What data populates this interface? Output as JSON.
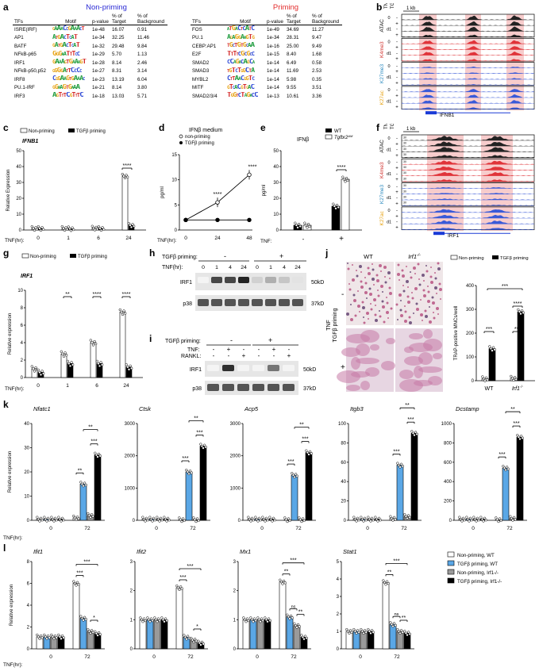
{
  "panels": {
    "a": "a",
    "b": "b",
    "c": "c",
    "d": "d",
    "e": "e",
    "f": "f",
    "g": "g",
    "h": "h",
    "i": "i",
    "j": "j",
    "k": "k",
    "l": "l"
  },
  "panel_a": {
    "nonpriming_title": "Non-priming",
    "priming_title": "Priming",
    "col_tfs": "TFs",
    "col_motif": "Motif",
    "col_pvalue": "p-value",
    "col_target": "% of Target",
    "col_background": "% of Background",
    "nonpriming_rows": [
      {
        "tf": "ISRE(IRF)",
        "logo": "GAAACCGAAACT",
        "p": "1e-48",
        "target": "16.07",
        "bg": "0.91"
      },
      {
        "tf": "AP1",
        "logo": "ATGACTCAT",
        "p": "1e-34",
        "target": "32.25",
        "bg": "11.46"
      },
      {
        "tf": "BATF",
        "logo": "GATGACTCAT",
        "p": "1e-32",
        "target": "29.48",
        "bg": "9.84"
      },
      {
        "tf": "NFkB-p65",
        "logo": "GGGAATTTCC",
        "p": "1e-29",
        "target": "5.70",
        "bg": "1.13"
      },
      {
        "tf": "IRF1",
        "logo": "GAAAGTGAAAGT",
        "p": "1e-28",
        "target": "8.14",
        "bg": "2.46"
      },
      {
        "tf": "NFkB-p50,p52",
        "logo": "GGGGATTCCCC",
        "p": "1e-27",
        "target": "8.31",
        "bg": "3.14"
      },
      {
        "tf": "IRF8",
        "logo": "CGGAAGTGAAAC",
        "p": "1e-23",
        "target": "13.19",
        "bg": "6.04"
      },
      {
        "tf": "PU.1-IRF",
        "logo": "GGAAGTGAAA",
        "p": "1e-21",
        "target": "8.14",
        "bg": "3.80"
      },
      {
        "tf": "IRF3",
        "logo": "AGTTTCGTTTC",
        "p": "1e-18",
        "target": "13.03",
        "bg": "5.71"
      }
    ],
    "priming_rows": [
      {
        "tf": "FOS",
        "logo": "ATGACTCATC",
        "p": "1e-49",
        "target": "34.69",
        "bg": "11.27"
      },
      {
        "tf": "PU.1",
        "logo": "AGAGGAAGTG",
        "p": "1e-34",
        "target": "28.31",
        "bg": "9.47"
      },
      {
        "tf": "CEBP:AP1",
        "logo": "TGCTGTGCAA",
        "p": "1e-16",
        "target": "25.00",
        "bg": "9.49"
      },
      {
        "tf": "E2F",
        "logo": "TTTTCGCGCC",
        "p": "1e-15",
        "target": "8.40",
        "bg": "1.68"
      },
      {
        "tf": "SMAD2",
        "logo": "CCAGACAGCA",
        "p": "1e-14",
        "target": "6.49",
        "bg": "0.58"
      },
      {
        "tf": "SMAD3",
        "logo": "TGTCTGGCTA",
        "p": "1e-14",
        "target": "11.69",
        "bg": "2.53"
      },
      {
        "tf": "MYBL2",
        "logo": "CTTAACGGTC",
        "p": "1e-14",
        "target": "5.98",
        "bg": "0.35"
      },
      {
        "tf": "MITF",
        "logo": "GTCACGTGAC",
        "p": "1e-14",
        "target": "9.55",
        "bg": "3.51"
      },
      {
        "tf": "SMAD2/3/4",
        "logo": "TGGTCTAGACC",
        "p": "1e-13",
        "target": "10.61",
        "bg": "3.36"
      }
    ]
  },
  "tracks": {
    "col_tnf": "TNF",
    "col_tgfb": "TGFβ",
    "scale": "1 kb",
    "groups": [
      {
        "name": "ATAC",
        "color": "#000000"
      },
      {
        "name": "K4me3",
        "color": "#d0312d"
      },
      {
        "name": "K27me3",
        "color": "#2e8bc0"
      },
      {
        "name": "K27ac",
        "color": "#e8a417"
      }
    ],
    "rows": [
      {
        "tnf": "0",
        "tgfb": "-"
      },
      {
        "tnf": "",
        "tgfb": "+"
      },
      {
        "tnf": "d1",
        "tgfb": "-"
      },
      {
        "tnf": "",
        "tgfb": "+"
      }
    ],
    "gene_b": "IFNB1",
    "gene_f": "IRF1",
    "ymax_f": "30"
  },
  "legend_nonpriming": "Non-priming",
  "legend_tgfb": "TGFβ priming",
  "tnf_hr": "TNF(hr):",
  "tnf": "TNF:",
  "relative_expression": "Relative Expression",
  "relative_expression_lc": "Relative expression",
  "pgml": "pg/ml",
  "sig4": "****",
  "sig3": "***",
  "sig2": "**",
  "sig1": "*",
  "ns": "ns",
  "panel_c": {
    "chart_data": {
      "type": "bar",
      "title": "IFNB1",
      "ylabel": "Relative Expression",
      "categories": [
        "0",
        "1",
        "6",
        "24"
      ],
      "series": [
        {
          "name": "Non-priming",
          "values": [
            1,
            1,
            1.2,
            34
          ]
        },
        {
          "name": "TGFβ priming",
          "values": [
            1,
            0.8,
            1,
            3
          ]
        }
      ],
      "ylim": [
        0,
        50
      ],
      "yticks": [
        "0",
        "10",
        "20",
        "30",
        "40",
        "50"
      ]
    }
  },
  "panel_d": {
    "chart_data": {
      "type": "line",
      "title": "IFNβ medium",
      "ylabel": "pg/ml",
      "x": [
        "0",
        "24",
        "48"
      ],
      "series": [
        {
          "name": "non-priming",
          "values": [
            2,
            5.5,
            11
          ]
        },
        {
          "name": "TGFβ priming",
          "values": [
            2,
            2,
            2
          ]
        }
      ],
      "ylim": [
        0,
        15
      ],
      "yticks": [
        "0",
        "5",
        "10",
        "15"
      ]
    }
  },
  "panel_e": {
    "legend_wt": "WT",
    "legend_ko": "Tgfbr2",
    "legend_ko_sup": "ΔM",
    "chart_data": {
      "type": "bar",
      "title": "IFNβ",
      "ylabel": "pg/ml",
      "categories": [
        "-",
        "+"
      ],
      "series": [
        {
          "name": "WT",
          "values": [
            3,
            15
          ]
        },
        {
          "name": "Tgfbr2ΔM",
          "values": [
            3,
            32
          ]
        }
      ],
      "ylim": [
        0,
        50
      ],
      "yticks": [
        "0",
        "10",
        "20",
        "30",
        "40",
        "50"
      ]
    }
  },
  "panel_g": {
    "chart_data": {
      "type": "bar",
      "title": "IRF1",
      "ylabel": "Relative expression",
      "categories": [
        "0",
        "1",
        "6",
        "24"
      ],
      "series": [
        {
          "name": "Non-priming",
          "values": [
            1,
            2.7,
            4,
            7.5
          ]
        },
        {
          "name": "TGFβ priming",
          "values": [
            0.6,
            1.6,
            1.6,
            1.2
          ]
        }
      ],
      "ylim": [
        0,
        10
      ],
      "yticks": [
        "0",
        "2",
        "4",
        "6",
        "8",
        "10"
      ],
      "sig": [
        "",
        "**",
        "****",
        "****"
      ]
    }
  },
  "panel_h": {
    "header": "TGFβ priming:",
    "minus": "-",
    "plus": "+",
    "tnf_label": "TNF(hr):",
    "times": [
      "0",
      "1",
      "4",
      "24",
      "0",
      "1",
      "4",
      "24"
    ],
    "band1": "IRF1",
    "band2": "p38",
    "kd1": "50kD",
    "kd2": "37kD",
    "irf1_intensity": [
      0.05,
      0.8,
      0.8,
      0.95,
      0.2,
      0.35,
      0.25,
      0.12
    ]
  },
  "panel_i": {
    "header": "TGFβ priming:",
    "minus": "-",
    "plus": "+",
    "tnf_label": "TNF:",
    "rankl_label": "RANKL:",
    "tnf_row": [
      "-",
      "+",
      "-",
      "-",
      "+",
      "-"
    ],
    "rankl_row": [
      "-",
      "-",
      "+",
      "-",
      "-",
      "+"
    ],
    "band1": "IRF1",
    "band2": "p38",
    "kd1": "50kD",
    "kd2": "37kD",
    "irf1_intensity": [
      0.05,
      0.9,
      0.05,
      0.05,
      0.6,
      0.05
    ]
  },
  "panel_j": {
    "wt": "WT",
    "ko": "Irf1",
    "ko_sup": "-/-",
    "tnf": "TNF",
    "tgfb": "TGFβ priming",
    "minus": "-",
    "plus": "+",
    "legend_nonpriming": "Non-priming",
    "legend_tgfb": "TGFβ priming",
    "chart_data": {
      "type": "bar",
      "ylabel": "TRAP-positive MNCs/well",
      "categories": [
        "WT",
        "Irf1-/-"
      ],
      "series": [
        {
          "name": "Non-priming",
          "values": [
            8,
            10
          ]
        },
        {
          "name": "TGFβ priming",
          "values": [
            135,
            290
          ]
        }
      ],
      "ylim": [
        0,
        400
      ],
      "yticks": [
        "0",
        "100",
        "200",
        "300",
        "400"
      ]
    }
  },
  "panel_k": {
    "genes": [
      {
        "name": "Nfatc1",
        "yticks": [
          "0",
          "10",
          "20",
          "30",
          "40"
        ],
        "ymax": 40,
        "values": [
          1,
          15,
          2,
          27
        ]
      },
      {
        "name": "Ctsk",
        "yticks": [
          "0",
          "1000",
          "2000",
          "3000"
        ],
        "ymax": 3000,
        "values": [
          5,
          1500,
          20,
          2300
        ]
      },
      {
        "name": "Acp5",
        "yticks": [
          "0",
          "1000",
          "2000",
          "3000"
        ],
        "ymax": 3000,
        "values": [
          5,
          1400,
          20,
          2100
        ]
      },
      {
        "name": "Itgb3",
        "yticks": [
          "0",
          "20",
          "40",
          "60",
          "80",
          "100"
        ],
        "ymax": 100,
        "values": [
          2,
          57,
          4,
          90
        ]
      },
      {
        "name": "Dcstamp",
        "yticks": [
          "0",
          "200",
          "400",
          "600",
          "800",
          "1000"
        ],
        "ymax": 1000,
        "values": [
          5,
          540,
          20,
          860
        ]
      }
    ],
    "x_labels": [
      "0",
      "72"
    ]
  },
  "panel_l": {
    "genes": [
      {
        "name": "Ifit1",
        "yticks": [
          "0",
          "2",
          "4",
          "6",
          "8"
        ],
        "ymax": 8,
        "values": [
          1.1,
          1.1,
          1.1,
          1.1,
          6,
          2.8,
          1.6,
          1.4
        ]
      },
      {
        "name": "Ifit2",
        "yticks": [
          "0",
          "1",
          "2",
          "3"
        ],
        "ymax": 3,
        "values": [
          1,
          1,
          1,
          1,
          2.1,
          0.4,
          0.3,
          0.2
        ]
      },
      {
        "name": "Mx1",
        "yticks": [
          "0",
          "1",
          "2",
          "3"
        ],
        "ymax": 3,
        "values": [
          1,
          1,
          1,
          1,
          2.3,
          1.1,
          0.8,
          0.4
        ]
      },
      {
        "name": "Stat1",
        "yticks": [
          "0",
          "1",
          "2",
          "3",
          "4",
          "5"
        ],
        "ymax": 5,
        "values": [
          1,
          1,
          1,
          1,
          3.8,
          1.4,
          1,
          0.9
        ]
      }
    ],
    "x_labels": [
      "0",
      "72"
    ],
    "legend": [
      {
        "label": "Non-priming, WT",
        "color": "#ffffff"
      },
      {
        "label": "TGFβ priming, WT",
        "color": "#5aa7e6"
      },
      {
        "label": "Non-priming, Irf1-/-",
        "color": "#9a9a9a"
      },
      {
        "label": "TGFβ priming, Irf1-/-",
        "color": "#000000"
      }
    ]
  },
  "colors": {
    "blue_title": "#2a2ad4",
    "red_title": "#e32d2d",
    "pink_highlight": "#f6c3c3",
    "track_blue": "#3a5ad8",
    "track_red": "#e0343a",
    "bar_blue": "#5aa7e6",
    "bar_gray": "#9a9a9a"
  }
}
